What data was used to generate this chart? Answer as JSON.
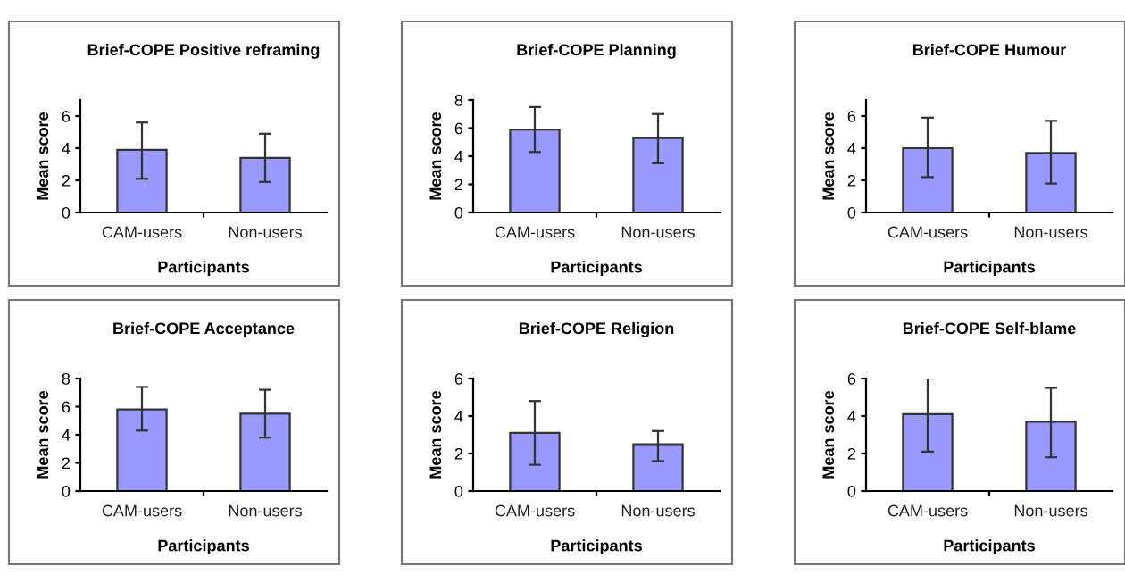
{
  "chart_data": [
    {
      "type": "bar",
      "title": "Brief-COPE Positive reframing",
      "xlabel": "Participants",
      "ylabel": "Mean score",
      "categories": [
        "CAM-users",
        "Non-users"
      ],
      "values": [
        3.9,
        3.4
      ],
      "errors": [
        [
          2.1,
          5.6
        ],
        [
          1.9,
          4.9
        ]
      ],
      "color": "#9999ff",
      "ylim": [
        0,
        7
      ],
      "yticks": [
        0,
        2,
        4,
        6
      ],
      "grid": false,
      "legend": false
    },
    {
      "type": "bar",
      "title": "Brief-COPE Planning",
      "xlabel": "Participants",
      "ylabel": "Mean score",
      "categories": [
        "CAM-users",
        "Non-users"
      ],
      "values": [
        5.9,
        5.3
      ],
      "errors": [
        [
          4.3,
          7.5
        ],
        [
          3.5,
          7.0
        ]
      ],
      "color": "#9999ff",
      "ylim": [
        0,
        8
      ],
      "yticks": [
        0,
        2,
        4,
        6,
        8
      ],
      "grid": false,
      "legend": false
    },
    {
      "type": "bar",
      "title": "Brief-COPE Humour",
      "xlabel": "Participants",
      "ylabel": "Mean score",
      "categories": [
        "CAM-users",
        "Non-users"
      ],
      "values": [
        4.0,
        3.7
      ],
      "errors": [
        [
          2.2,
          5.9
        ],
        [
          1.8,
          5.7
        ]
      ],
      "color": "#9999ff",
      "ylim": [
        0,
        7
      ],
      "yticks": [
        0,
        2,
        4,
        6
      ],
      "grid": false,
      "legend": false
    },
    {
      "type": "bar",
      "title": "Brief-COPE Acceptance",
      "xlabel": "Participants",
      "ylabel": "Mean score",
      "categories": [
        "CAM-users",
        "Non-users"
      ],
      "values": [
        5.8,
        5.5
      ],
      "errors": [
        [
          4.3,
          7.4
        ],
        [
          3.8,
          7.2
        ]
      ],
      "color": "#9999ff",
      "ylim": [
        0,
        8
      ],
      "yticks": [
        0,
        2,
        4,
        6,
        8
      ],
      "grid": false,
      "legend": false
    },
    {
      "type": "bar",
      "title": "Brief-COPE Religion",
      "xlabel": "Participants",
      "ylabel": "Mean score",
      "categories": [
        "CAM-users",
        "Non-users"
      ],
      "values": [
        3.1,
        2.5
      ],
      "errors": [
        [
          1.4,
          4.8
        ],
        [
          1.6,
          3.2
        ]
      ],
      "color": "#9999ff",
      "ylim": [
        0,
        6
      ],
      "yticks": [
        0,
        2,
        4,
        6
      ],
      "grid": false,
      "legend": false
    },
    {
      "type": "bar",
      "title": "Brief-COPE Self-blame",
      "xlabel": "Participants",
      "ylabel": "Mean score",
      "categories": [
        "CAM-users",
        "Non-users"
      ],
      "values": [
        4.1,
        3.7
      ],
      "errors": [
        [
          2.1,
          6.0
        ],
        [
          1.8,
          5.5
        ]
      ],
      "color": "#9999ff",
      "ylim": [
        0,
        6
      ],
      "yticks": [
        0,
        2,
        4,
        6
      ],
      "grid": false,
      "legend": false
    }
  ]
}
